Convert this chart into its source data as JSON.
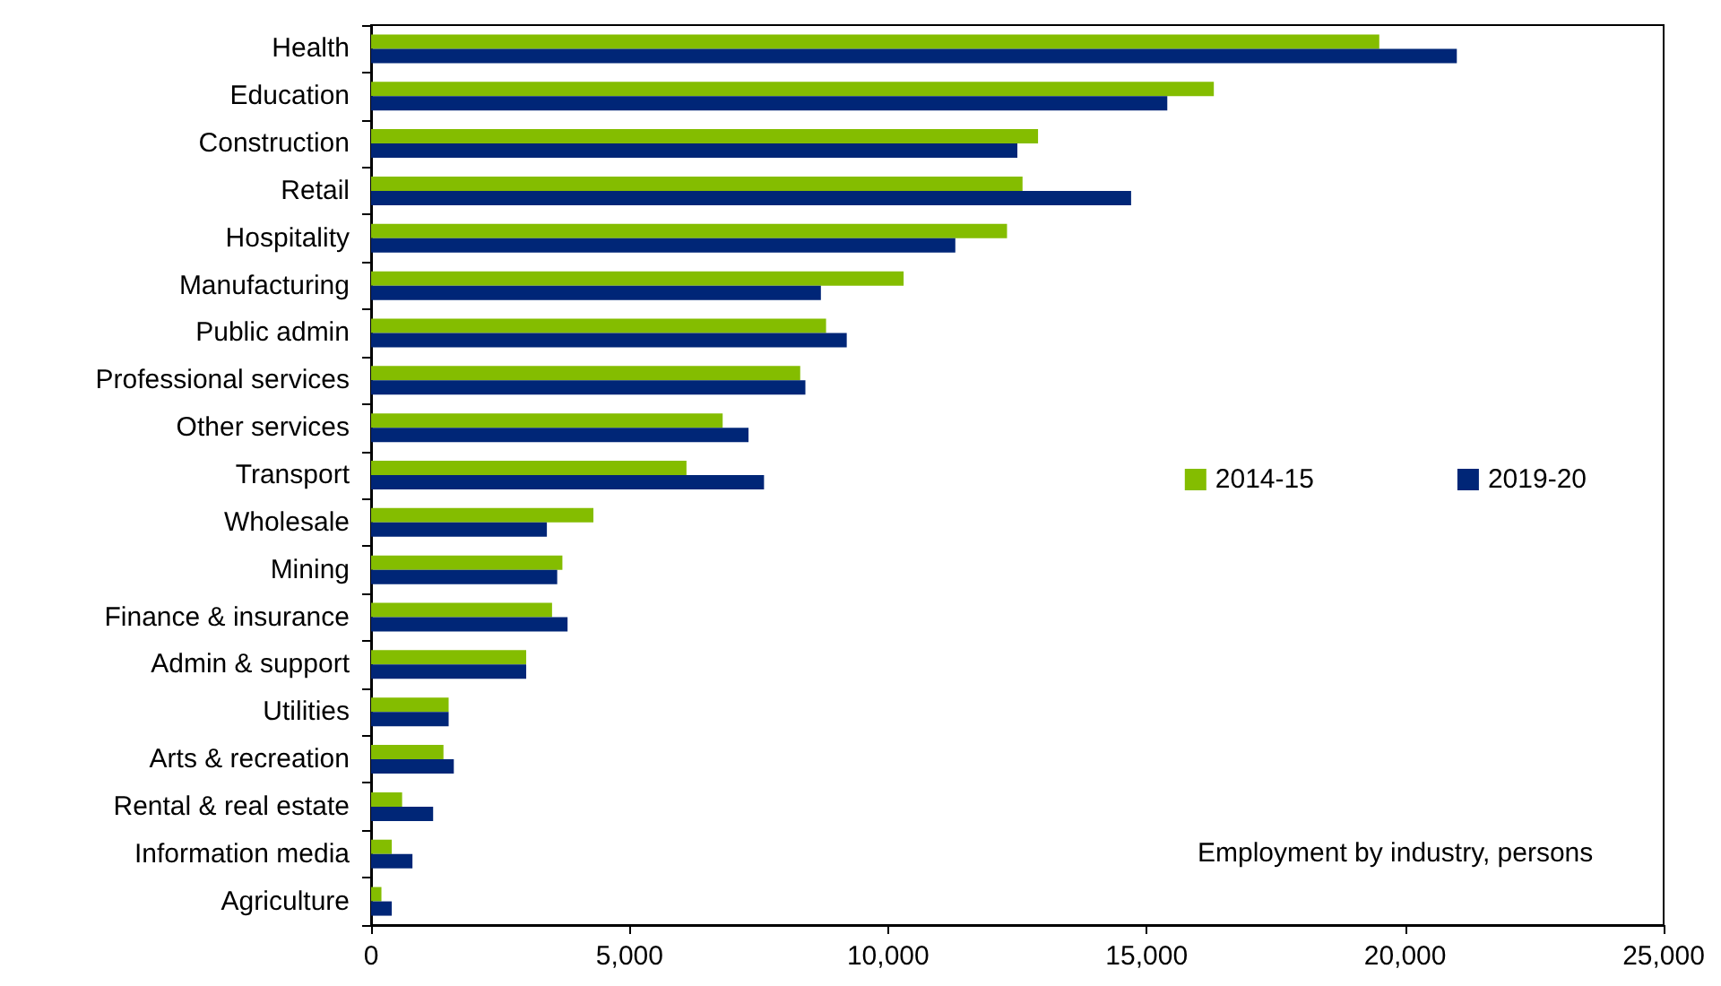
{
  "chart_data": {
    "type": "bar",
    "orientation": "horizontal",
    "categories": [
      "Health",
      "Education",
      "Construction",
      "Retail",
      "Hospitality",
      "Manufacturing",
      "Public admin",
      "Professional services",
      "Other services",
      "Transport",
      "Wholesale",
      "Mining",
      "Finance & insurance",
      "Admin & support",
      "Utilities",
      "Arts & recreation",
      "Rental & real estate",
      "Information media",
      "Agriculture"
    ],
    "series": [
      {
        "name": "2014-15",
        "color": "#84bd00",
        "values": [
          19500,
          16300,
          12900,
          12600,
          12300,
          10300,
          8800,
          8300,
          6800,
          6100,
          4300,
          3700,
          3500,
          3000,
          1500,
          1400,
          600,
          400,
          200
        ]
      },
      {
        "name": "2019-20",
        "color": "#002677",
        "values": [
          21000,
          15400,
          12500,
          14700,
          11300,
          8700,
          9200,
          8400,
          7300,
          7600,
          3400,
          3600,
          3800,
          3000,
          1500,
          1600,
          1200,
          800,
          400
        ]
      }
    ],
    "xlim": [
      0,
      25000
    ],
    "xticks": [
      {
        "value": 0,
        "label": "0"
      },
      {
        "value": 5000,
        "label": "5,000"
      },
      {
        "value": 10000,
        "label": "10,000"
      },
      {
        "value": 15000,
        "label": "15,000"
      },
      {
        "value": 20000,
        "label": "20,000"
      },
      {
        "value": 25000,
        "label": "25,000"
      }
    ],
    "grid": false,
    "legend": "right",
    "annotations": [
      "Employment by industry, persons"
    ]
  }
}
